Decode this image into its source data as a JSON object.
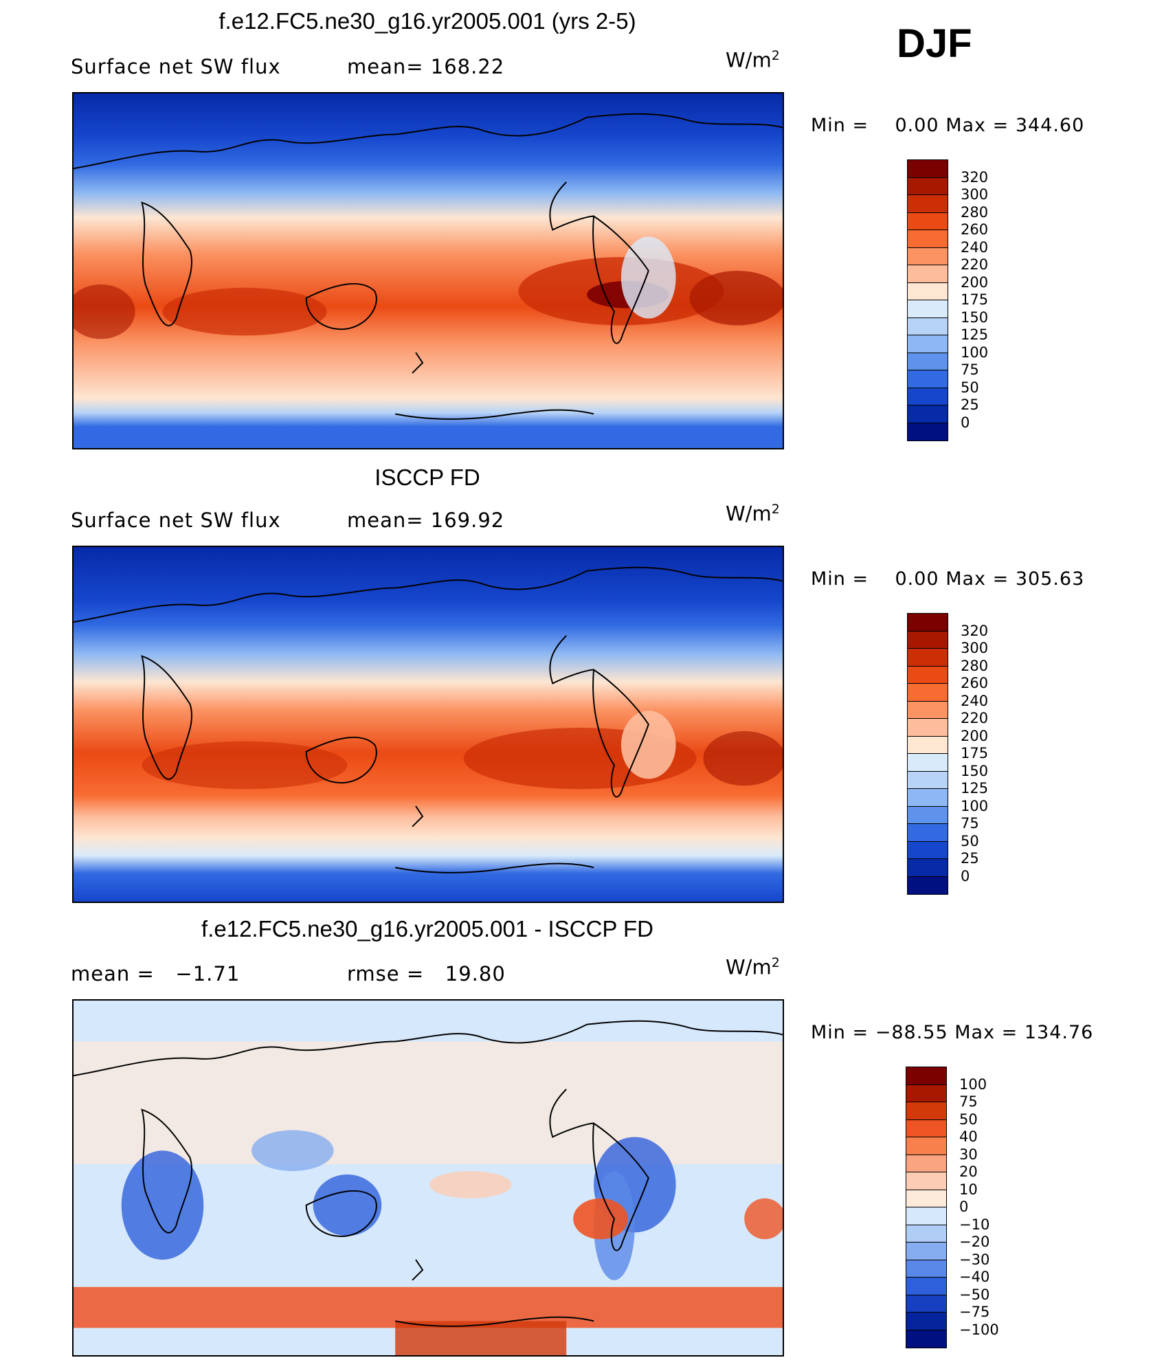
{
  "season": "DJF",
  "panels": [
    {
      "title": "f.e12.FC5.ne30_g16.yr2005.001 (yrs 2-5)",
      "left_label": "Surface net SW flux",
      "mid_label": "mean= 168.22",
      "units": "W/m",
      "units_exp": "2",
      "min_label": "Min =",
      "min_value": "0.00",
      "max_label": "Max =",
      "max_value": "344.60",
      "colorbar": {
        "colors": [
          "#7b0000",
          "#a81800",
          "#cc2e06",
          "#eb4a14",
          "#f86c32",
          "#fb9363",
          "#fdbc9c",
          "#fde6d2",
          "#d9ebfb",
          "#b7d4f7",
          "#8db8f3",
          "#5f93eb",
          "#316ae2",
          "#1646cc",
          "#062aa8",
          "#001080"
        ],
        "labels": [
          "320",
          "300",
          "280",
          "260",
          "240",
          "220",
          "200",
          "175",
          "150",
          "125",
          "100",
          "75",
          "50",
          "25",
          "0"
        ]
      }
    },
    {
      "title": "ISCCP FD",
      "left_label": "Surface net SW flux",
      "mid_label": "mean= 169.92",
      "units": "W/m",
      "units_exp": "2",
      "min_label": "Min =",
      "min_value": "0.00",
      "max_label": "Max =",
      "max_value": "305.63",
      "colorbar": {
        "colors": [
          "#7b0000",
          "#a81800",
          "#cc2e06",
          "#eb4a14",
          "#f86c32",
          "#fb9363",
          "#fdbc9c",
          "#fde6d2",
          "#d9ebfb",
          "#b7d4f7",
          "#8db8f3",
          "#5f93eb",
          "#316ae2",
          "#1646cc",
          "#062aa8",
          "#001080"
        ],
        "labels": [
          "320",
          "300",
          "280",
          "260",
          "240",
          "220",
          "200",
          "175",
          "150",
          "125",
          "100",
          "75",
          "50",
          "25",
          "0"
        ]
      }
    },
    {
      "title": "f.e12.FC5.ne30_g16.yr2005.001 - ISCCP FD",
      "left_label": "mean =   −1.71",
      "mid_label": "rmse =   19.80",
      "units": "W/m",
      "units_exp": "2",
      "min_label": "Min =",
      "min_value": "−88.55",
      "max_label": "Max =",
      "max_value": "134.76",
      "colorbar": {
        "colors": [
          "#7b0000",
          "#a81800",
          "#d23a0a",
          "#ee5424",
          "#f7804c",
          "#fba482",
          "#fdccb4",
          "#fdeada",
          "#d6e8fb",
          "#b0cdf6",
          "#86adf0",
          "#5a88e8",
          "#2f60dc",
          "#1640c0",
          "#05249c",
          "#001080"
        ],
        "labels": [
          "100",
          "75",
          "50",
          "40",
          "30",
          "20",
          "10",
          "0",
          "−10",
          "−20",
          "−30",
          "−40",
          "−50",
          "−75",
          "−100"
        ]
      }
    }
  ]
}
